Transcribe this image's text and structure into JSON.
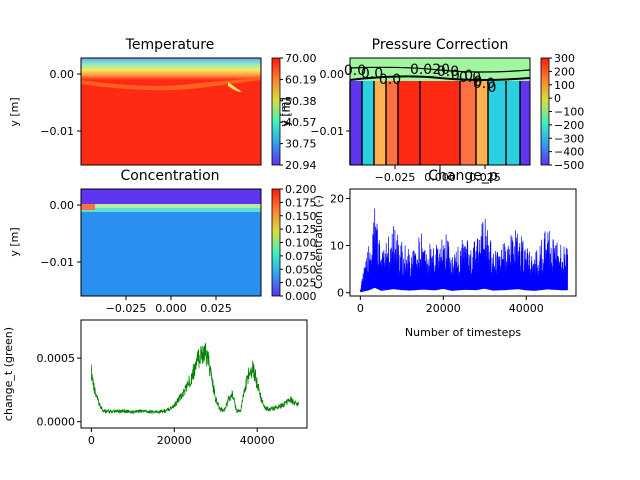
{
  "chart_data": [
    {
      "type": "heatmap",
      "title": "Temperature",
      "xlabel": "",
      "ylabel": "y [m]",
      "xlim": [
        -0.045,
        0.045
      ],
      "ylim": [
        -0.015,
        0.003
      ],
      "yticks": [
        "0.00",
        "−0.01"
      ],
      "xticks": [],
      "colorbar": {
        "ticks": [
          "70.00",
          "60.19",
          "50.38",
          "40.57",
          "30.75",
          "20.94"
        ],
        "min": 20.94,
        "max": 70.0,
        "label": "y [m]"
      }
    },
    {
      "type": "heatmap",
      "title": "Pressure Correction",
      "xlabel": "",
      "ylabel": "y [m]",
      "xlim": [
        -0.045,
        0.045
      ],
      "ylim": [
        -0.015,
        0.003
      ],
      "yticks": [
        "0.00",
        "−0.01"
      ],
      "xticks": [
        "−0.025",
        "0.000",
        "0.025"
      ],
      "contour_labels": [
        "0.0",
        "0.0",
        "0.0",
        "0.020",
        "0.0",
        "0.0",
        "0.0",
        "0",
        "0.0",
        "0"
      ],
      "colorbar": {
        "ticks": [
          "300",
          "200",
          "100",
          "0",
          "−100",
          "−200",
          "−300",
          "−400",
          "−500"
        ],
        "min": -500,
        "max": 300
      }
    },
    {
      "type": "heatmap",
      "title": "Concentration",
      "xlabel": "",
      "ylabel": "y [m]",
      "xlim": [
        -0.045,
        0.045
      ],
      "ylim": [
        -0.015,
        0.003
      ],
      "yticks": [
        "0.00",
        "−0.01"
      ],
      "xticks": [
        "−0.025",
        "0.000",
        "0.025"
      ],
      "colorbar": {
        "ticks": [
          "0.200",
          "0.175",
          "0.150",
          "0.125",
          "0.100",
          "0.075",
          "0.050",
          "0.025",
          "0.000"
        ],
        "min": 0.0,
        "max": 0.2,
        "label": "Concentration (-)"
      }
    },
    {
      "type": "line",
      "title": "Change_p",
      "xlabel": "Number of timesteps",
      "ylabel": "",
      "xlim": [
        -2500,
        52000
      ],
      "ylim": [
        -0.7,
        22
      ],
      "xticks": [
        "0",
        "20000",
        "40000"
      ],
      "yticks": [
        "0",
        "10",
        "20"
      ],
      "color": "#0000ff",
      "series": [
        {
          "x": [
            0,
            2000,
            3500,
            5000,
            8000,
            10000,
            12000,
            15000,
            18000,
            20000,
            22000,
            25000,
            28000,
            30000,
            32000,
            35000,
            38000,
            40000,
            42000,
            45000,
            48000,
            50000
          ],
          "y": [
            2,
            10,
            21,
            8,
            15,
            11,
            9,
            13,
            10,
            16,
            8,
            12,
            11,
            17,
            9,
            11,
            15,
            10,
            8,
            14,
            11,
            10
          ]
        }
      ]
    },
    {
      "type": "line",
      "title": "",
      "xlabel": "",
      "ylabel": "change_t (green)",
      "xlim": [
        -2500,
        52000
      ],
      "ylim": [
        -5e-05,
        0.0008
      ],
      "xticks": [
        "0",
        "20000",
        "40000"
      ],
      "yticks": [
        "0.0000",
        "0.0005"
      ],
      "color": "#008000",
      "series": [
        {
          "x": [
            0,
            1000,
            2000,
            3000,
            5000,
            8000,
            10000,
            12000,
            15000,
            18000,
            20000,
            22000,
            24000,
            25000,
            26000,
            27000,
            28000,
            29000,
            30000,
            31000,
            32000,
            33000,
            34000,
            35000,
            36000,
            37000,
            38000,
            39000,
            40000,
            41000,
            42000,
            44000,
            46000,
            48000,
            50000
          ],
          "y": [
            0.00047,
            0.00025,
            0.00015,
            0.0001,
            9e-05,
            0.0001,
            9e-05,
            0.0001,
            9e-05,
            0.0001,
            0.00015,
            0.00025,
            0.0004,
            0.0005,
            0.0006,
            0.00065,
            0.0006,
            0.0004,
            0.0002,
            0.00012,
            0.0001,
            0.0002,
            0.00025,
            0.0001,
            0.0001,
            0.0003,
            0.00045,
            0.0005,
            0.00035,
            0.0002,
            0.00012,
            0.00012,
            0.00015,
            0.0002,
            0.00015
          ]
        }
      ]
    }
  ]
}
